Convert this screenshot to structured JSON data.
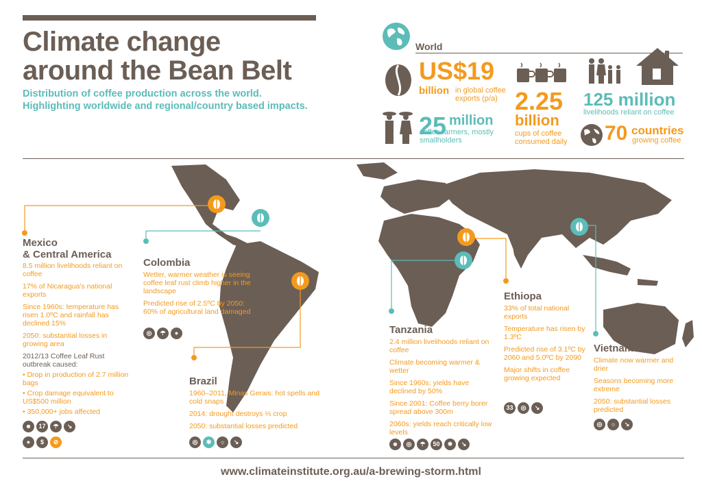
{
  "header": {
    "title_line1": "Climate change",
    "title_line2": "around the Bean Belt",
    "subtitle": "Distribution of coffee production across the world. Highlighting worldwide and regional/country based impacts."
  },
  "world": {
    "label": "World",
    "exports_amount": "US$19",
    "exports_unit": "billion",
    "exports_desc": "in global coffee exports (p/a)",
    "cups_amount": "2.25",
    "cups_unit": "billion",
    "cups_desc": "cups of coffee consumed daily",
    "livelihoods_amount": "125 million",
    "livelihoods_desc": "livelihoods reliant on coffee",
    "farmers_amount": "25",
    "farmers_unit": "million",
    "farmers_desc": "coffee farmers, mostly smallholders",
    "countries_amount": "70",
    "countries_unit": "countries",
    "countries_desc": "growing coffee"
  },
  "regions": {
    "mexico": {
      "title1": "Mexico",
      "title2": "& Central America",
      "p1": "8.5 million livelihoods reliant on coffee",
      "p2": "17% of Nicaragua's national exports",
      "p3": "Since 1960s: temperature has risen 1.0ºC and rainfall has declined 15%",
      "p4": "2050: substantial losses in growing area",
      "p5": "2012/13 Coffee Leaf Rust outbreak caused:",
      "b1": "Drop in production of 2.7 million bags",
      "b2": "Crop damage equivalent to US$500 million",
      "b3": "350,000+ jobs affected",
      "icon_num": "17"
    },
    "colombia": {
      "title": "Colombia",
      "p1": "Wetter, warmer weather is seeing coffee leaf rust climb higher in the landscape",
      "p2": "Predicted rise of 2.5ºC by 2050: 60% of agricultural land damaged"
    },
    "brazil": {
      "title": "Brazil",
      "p1": "1960–2011, Minas Gerais: hot spells and cold snaps",
      "p2": "2014: drought destroys ⅓ crop",
      "p3": "2050: substantial losses predicted"
    },
    "tanzania": {
      "title": "Tanzania",
      "p1": "2.4 million livelihoods reliant on coffee",
      "p2": "Climate becoming warmer & wetter",
      "p3": "Since 1960s: yields have declined by 50%",
      "p4": "Since 2001: Coffee berry borer spread above 300m",
      "p5": "2060s: yields reach critically low levels",
      "icon_num": "50"
    },
    "ethiopia": {
      "title": "Ethiopa",
      "p1": "33% of total national exports",
      "p2": "Temperature has risen by 1.3ºC",
      "p3": "Predicted rise of 3.1ºC by 2060 and 5.0ºC by 2090",
      "p4": "Major shifts in coffee growing expected",
      "icon_num": "33"
    },
    "vietnam": {
      "title": "Vietnam",
      "p1": "Climate now warmer and drier",
      "p2": "Seasons becoming more extreme",
      "p3": "2050: substantial losses predicted"
    }
  },
  "footer": {
    "url": "www.climateinstitute.org.au/a-brewing-storm.html"
  },
  "colors": {
    "brown": "#6b5e55",
    "teal": "#5bbcb8",
    "orange": "#f39a1e"
  }
}
